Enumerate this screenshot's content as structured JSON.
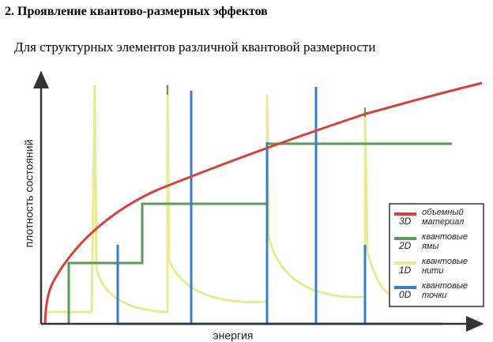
{
  "header": {
    "title": "2. Проявление квантово-размерных эффектов",
    "subtitle": "Для структурных элементов различной квантовой размерности"
  },
  "figure": {
    "y_label": "плотность состояний",
    "x_label": "энергия",
    "legend": [
      {
        "dim": "3D",
        "lines": [
          "объемный",
          "материал"
        ]
      },
      {
        "dim": "2D",
        "lines": [
          "квантовые",
          "ямы"
        ]
      },
      {
        "dim": "1D",
        "lines": [
          "квантовые",
          "нити"
        ]
      },
      {
        "dim": "0D",
        "lines": [
          "квантовые",
          "точки"
        ]
      }
    ]
  }
}
